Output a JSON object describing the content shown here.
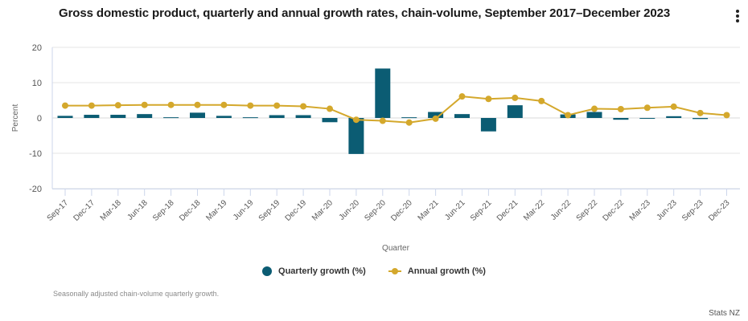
{
  "header": {
    "title": "Gross domestic product, quarterly and annual growth rates, chain-volume, September 2017–December 2023",
    "menu_icon": "more-vertical-icon"
  },
  "chart_data": {
    "type": "bar",
    "title": "Gross domestic product, quarterly and annual growth rates, chain-volume, September 2017–December 2023",
    "xlabel": "Quarter",
    "ylabel": "Percent",
    "ylim": [
      -20,
      20
    ],
    "yticks": [
      20,
      10,
      0,
      -10,
      -20
    ],
    "grid": true,
    "legend_position": "bottom-center",
    "categories": [
      "Sep-17",
      "Dec-17",
      "Mar-18",
      "Jun-18",
      "Sep-18",
      "Dec-18",
      "Mar-19",
      "Jun-19",
      "Sep-19",
      "Dec-19",
      "Mar-20",
      "Jun-20",
      "Sep-20",
      "Dec-20",
      "Mar-21",
      "Jun-21",
      "Sep-21",
      "Dec-21",
      "Mar-22",
      "Jun-22",
      "Sep-22",
      "Dec-22",
      "Mar-23",
      "Jun-23",
      "Sep-23",
      "Dec-23"
    ],
    "series": [
      {
        "name": "Quarterly growth (%)",
        "type": "bar",
        "color": "#0b5c73",
        "values": [
          0.6,
          0.9,
          0.9,
          1.1,
          0.2,
          1.5,
          0.6,
          0.2,
          0.8,
          0.8,
          -1.2,
          -10.2,
          14.0,
          0.2,
          1.7,
          1.1,
          -3.8,
          3.6,
          0.0,
          1.0,
          1.7,
          -0.5,
          -0.2,
          0.5,
          -0.3,
          0.0
        ]
      },
      {
        "name": "Annual growth (%)",
        "type": "line",
        "color": "#d4a82c",
        "values": [
          3.5,
          3.5,
          3.6,
          3.7,
          3.7,
          3.7,
          3.7,
          3.5,
          3.5,
          3.3,
          2.6,
          -0.5,
          -0.8,
          -1.3,
          -0.2,
          6.1,
          5.4,
          5.7,
          4.8,
          0.8,
          2.6,
          2.5,
          2.9,
          3.2,
          1.4,
          0.8
        ]
      }
    ]
  },
  "legend": {
    "items": [
      {
        "label": "Quarterly growth (%)",
        "icon": "circle-marker-icon"
      },
      {
        "label": "Annual growth (%)",
        "icon": "line-marker-icon"
      }
    ]
  },
  "footnote": "Seasonally adjusted chain-volume quarterly growth.",
  "credit": "Stats NZ"
}
